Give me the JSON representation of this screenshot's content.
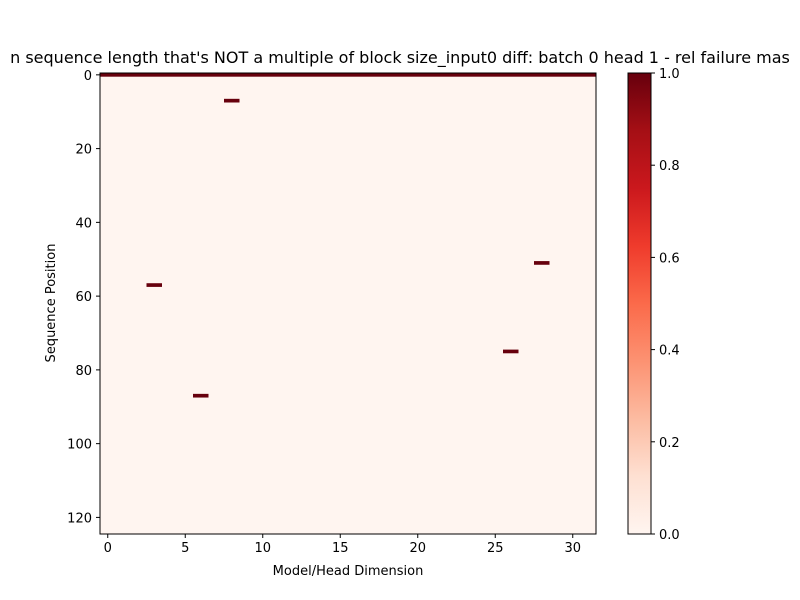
{
  "chart_data": {
    "type": "heatmap",
    "title": "n sequence length that's NOT a multiple of block size_input0 diff: batch 0 head 1 - rel failure mas",
    "xlabel": "Model/Head Dimension",
    "ylabel": "Sequence Position",
    "x_ticks": [
      0,
      5,
      10,
      15,
      20,
      25,
      30
    ],
    "y_ticks": [
      0,
      20,
      40,
      60,
      80,
      100,
      120
    ],
    "x_range": [
      -0.5,
      31.5
    ],
    "y_range": [
      -0.5,
      124.5
    ],
    "n_cols": 32,
    "n_rows": 125,
    "background_value": 0.0,
    "colormap": "Reds",
    "colorbar": {
      "min": 0.0,
      "max": 1.0,
      "ticks": [
        "0.0",
        "0.2",
        "0.4",
        "0.6",
        "0.8",
        "1.0"
      ]
    },
    "failure_cells": [
      {
        "row": 0,
        "cols": "0-31",
        "value": 1.0
      },
      {
        "row": 7,
        "col": 8,
        "value": 1.0
      },
      {
        "row": 51,
        "col": 28,
        "value": 1.0
      },
      {
        "row": 57,
        "col": 3,
        "value": 1.0
      },
      {
        "row": 75,
        "col": 26,
        "value": 1.0
      },
      {
        "row": 87,
        "col": 6,
        "value": 1.0
      }
    ],
    "colors": {
      "low": "#fff5f0",
      "high": "#67000d"
    }
  }
}
